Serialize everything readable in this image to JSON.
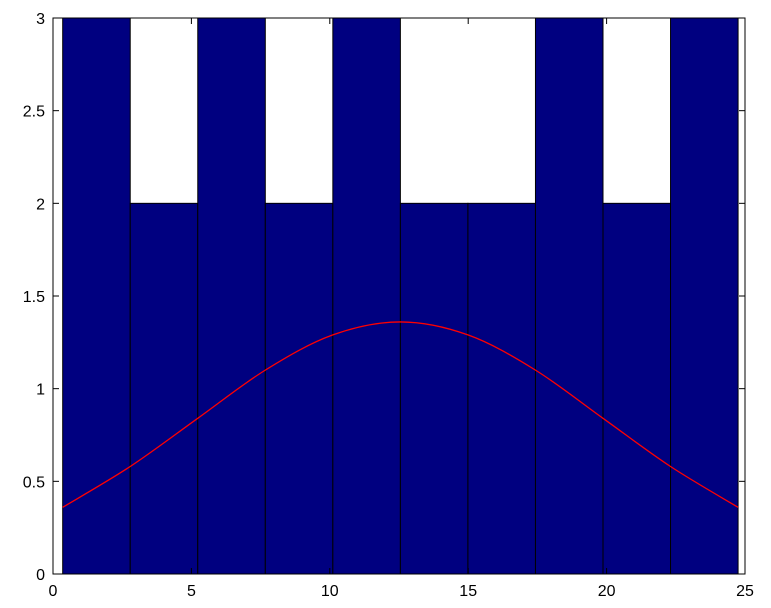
{
  "chart_data": {
    "type": "bar",
    "title": "",
    "xlabel": "",
    "ylabel": "",
    "xlim": [
      0,
      25
    ],
    "ylim": [
      0,
      3
    ],
    "x_ticks": [
      "0",
      "5",
      "10",
      "15",
      "20",
      "25"
    ],
    "y_ticks": [
      "0",
      "0.5",
      "1",
      "1.5",
      "2",
      "2.5",
      "3"
    ],
    "grid": false,
    "legend": "none",
    "bars": {
      "edges": [
        0.35,
        2.79,
        5.23,
        7.67,
        10.11,
        12.55,
        14.99,
        17.43,
        19.87,
        22.31,
        24.75
      ],
      "values": [
        3,
        2,
        3,
        2,
        3,
        2,
        2,
        3,
        2,
        3
      ],
      "color": "#000080",
      "edge_color": "#000000"
    },
    "series": [
      {
        "type": "line",
        "color": "#ff0000",
        "x": [
          0.35,
          2.79,
          5.23,
          7.67,
          10.11,
          12.55,
          14.99,
          17.43,
          19.87,
          22.31,
          24.75
        ],
        "y": [
          0.36,
          0.58,
          0.84,
          1.1,
          1.29,
          1.36,
          1.29,
          1.1,
          0.84,
          0.58,
          0.36
        ]
      }
    ]
  }
}
